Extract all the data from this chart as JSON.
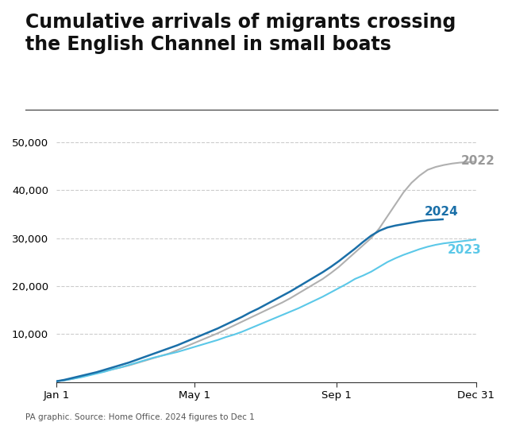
{
  "title": "Cumulative arrivals of migrants crossing\nthe English Channel in small boats",
  "subtitle": "PA graphic. Source: Home Office. 2024 figures to Dec 1",
  "title_fontsize": 17,
  "ylabel_fontsize": 10,
  "xlabel_fontsize": 10,
  "background_color": "#ffffff",
  "grid_color": "#cccccc",
  "series": [
    {
      "label": "2022",
      "color": "#b0b0b0",
      "label_color": "#999999",
      "day_of_year": [
        1,
        8,
        15,
        22,
        29,
        36,
        43,
        50,
        57,
        64,
        71,
        78,
        85,
        92,
        99,
        106,
        113,
        120,
        127,
        134,
        141,
        148,
        155,
        162,
        169,
        176,
        183,
        190,
        197,
        204,
        211,
        218,
        225,
        232,
        239,
        246,
        253,
        260,
        267,
        274,
        281,
        288,
        295,
        302,
        309,
        316,
        323,
        330,
        337,
        344,
        351,
        358,
        365
      ],
      "values": [
        200,
        400,
        700,
        1100,
        1500,
        1900,
        2300,
        2700,
        3100,
        3500,
        4000,
        4500,
        5000,
        5500,
        6000,
        6700,
        7400,
        8100,
        8800,
        9500,
        10200,
        11000,
        11800,
        12600,
        13400,
        14200,
        15000,
        15800,
        16600,
        17500,
        18500,
        19500,
        20500,
        21500,
        22700,
        24000,
        25500,
        27000,
        28500,
        30000,
        32000,
        34500,
        37000,
        39500,
        41500,
        43000,
        44200,
        44800,
        45200,
        45500,
        45700,
        45800,
        45900
      ]
    },
    {
      "label": "2023",
      "color": "#5bc8e8",
      "label_color": "#5bc8e8",
      "day_of_year": [
        1,
        8,
        15,
        22,
        29,
        36,
        43,
        50,
        57,
        64,
        71,
        78,
        85,
        92,
        99,
        106,
        113,
        120,
        127,
        134,
        141,
        148,
        155,
        162,
        169,
        176,
        183,
        190,
        197,
        204,
        211,
        218,
        225,
        232,
        239,
        246,
        253,
        260,
        267,
        274,
        281,
        288,
        295,
        302,
        309,
        316,
        323,
        330,
        337,
        344,
        351,
        358,
        365
      ],
      "values": [
        200,
        400,
        700,
        1000,
        1400,
        1800,
        2200,
        2700,
        3100,
        3600,
        4100,
        4600,
        5100,
        5500,
        5900,
        6300,
        6800,
        7300,
        7800,
        8300,
        8800,
        9400,
        9900,
        10500,
        11200,
        11900,
        12600,
        13300,
        14000,
        14700,
        15400,
        16200,
        17000,
        17800,
        18700,
        19600,
        20500,
        21500,
        22200,
        23000,
        24000,
        25000,
        25800,
        26500,
        27100,
        27700,
        28200,
        28600,
        28900,
        29100,
        29300,
        29500,
        29700
      ]
    },
    {
      "label": "2024",
      "color": "#1a6fa8",
      "label_color": "#1a6fa8",
      "day_of_year": [
        1,
        8,
        15,
        22,
        29,
        36,
        43,
        50,
        57,
        64,
        71,
        78,
        85,
        92,
        99,
        106,
        113,
        120,
        127,
        134,
        141,
        148,
        155,
        162,
        169,
        176,
        183,
        190,
        197,
        204,
        211,
        218,
        225,
        232,
        239,
        246,
        253,
        260,
        267,
        274,
        281,
        288,
        295,
        302,
        309,
        316,
        323,
        330,
        336
      ],
      "values": [
        200,
        500,
        900,
        1300,
        1700,
        2100,
        2600,
        3100,
        3600,
        4100,
        4700,
        5300,
        5900,
        6500,
        7100,
        7700,
        8400,
        9100,
        9800,
        10500,
        11200,
        12000,
        12800,
        13600,
        14500,
        15300,
        16200,
        17100,
        18000,
        18900,
        19900,
        20900,
        21900,
        22900,
        24000,
        25200,
        26500,
        27800,
        29200,
        30500,
        31500,
        32200,
        32600,
        32900,
        33200,
        33500,
        33700,
        33800,
        33900
      ]
    }
  ],
  "xtick_labels": [
    "Jan 1",
    "May 1",
    "Sep 1",
    "Dec 31"
  ],
  "xtick_days": [
    1,
    121,
    244,
    365
  ],
  "yticks": [
    10000,
    20000,
    30000,
    40000,
    50000
  ],
  "ylim": [
    0,
    52000
  ],
  "label_positions": {
    "2022": [
      352,
      46000
    ],
    "2023": [
      340,
      27500
    ],
    "2024": [
      320,
      35500
    ]
  }
}
